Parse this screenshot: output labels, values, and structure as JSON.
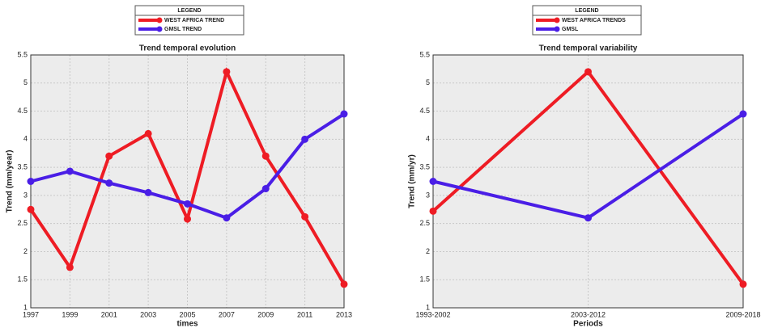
{
  "chart_data": [
    {
      "type": "line",
      "title": "Trend temporal evolution",
      "x_label": "times",
      "y_label": "Trend (mm/year)",
      "legend_title": "LEGEND",
      "x": [
        1997,
        1999,
        2001,
        2003,
        2005,
        2007,
        2009,
        2011,
        2013
      ],
      "xlim": [
        1997,
        2013
      ],
      "xticks": [
        1997,
        1999,
        2001,
        2003,
        2005,
        2007,
        2009,
        2011,
        2013
      ],
      "ylim": [
        1,
        5.5
      ],
      "yticks": [
        1,
        1.5,
        2,
        2.5,
        3,
        3.5,
        4,
        4.5,
        5,
        5.5
      ],
      "grid": true,
      "series": [
        {
          "name": "WEST AFRICA TREND",
          "color": "#ee1c24",
          "values": [
            2.75,
            1.72,
            3.7,
            4.1,
            2.58,
            5.2,
            3.7,
            2.62,
            1.42
          ]
        },
        {
          "name": "GMSL TREND",
          "color": "#4a1ee6",
          "values": [
            3.25,
            3.43,
            3.22,
            3.05,
            2.85,
            2.6,
            3.12,
            4.0,
            4.45
          ]
        }
      ]
    },
    {
      "type": "line",
      "title": "Trend temporal variability",
      "x_label": "Periods",
      "y_label": "Trend (mm/yr)",
      "legend_title": "LEGEND",
      "categories": [
        "1993-2002",
        "2003-2012",
        "2009-2018"
      ],
      "ylim": [
        1,
        5.5
      ],
      "yticks": [
        1,
        1.5,
        2,
        2.5,
        3,
        3.5,
        4,
        4.5,
        5,
        5.5
      ],
      "grid": true,
      "series": [
        {
          "name": "WEST AFRICA TRENDS",
          "color": "#ee1c24",
          "values": [
            2.72,
            5.2,
            1.42
          ]
        },
        {
          "name": "GMSL",
          "color": "#4a1ee6",
          "values": [
            3.25,
            2.6,
            4.45
          ]
        }
      ]
    }
  ]
}
